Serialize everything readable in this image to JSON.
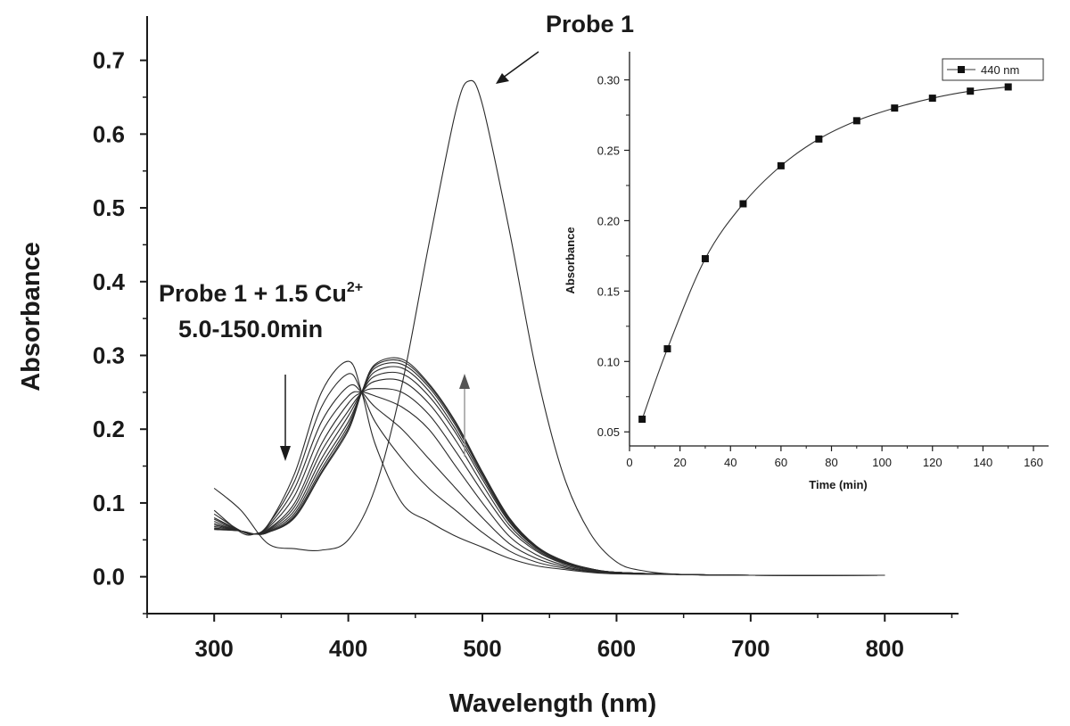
{
  "chart_data": [
    {
      "type": "line",
      "title": "",
      "xlabel": "Wavelength (nm)",
      "ylabel": "Absorbance",
      "xlim": [
        250,
        855
      ],
      "ylim": [
        -0.05,
        0.76
      ],
      "x_ticks": [
        300,
        400,
        500,
        600,
        700,
        800
      ],
      "y_ticks": [
        0.0,
        0.1,
        0.2,
        0.3,
        0.4,
        0.5,
        0.6,
        0.7
      ],
      "grid": false,
      "series": [
        {
          "name": "Probe 1",
          "x": [
            300,
            320,
            340,
            360,
            380,
            400,
            420,
            440,
            460,
            480,
            490,
            500,
            520,
            540,
            560,
            580,
            600,
            620,
            650,
            700,
            750,
            800
          ],
          "y": [
            0.12,
            0.09,
            0.045,
            0.038,
            0.036,
            0.05,
            0.12,
            0.26,
            0.45,
            0.63,
            0.672,
            0.64,
            0.47,
            0.28,
            0.14,
            0.06,
            0.02,
            0.008,
            0.003,
            0.002,
            0.002,
            0.002
          ]
        },
        {
          "x": [
            300,
            320,
            330,
            340,
            360,
            380,
            400,
            410,
            420,
            440,
            460,
            480,
            500,
            520,
            540,
            560,
            580,
            600,
            650,
            700,
            800
          ],
          "y": [
            0.09,
            0.06,
            0.058,
            0.07,
            0.14,
            0.25,
            0.292,
            0.25,
            0.18,
            0.1,
            0.075,
            0.055,
            0.04,
            0.025,
            0.015,
            0.01,
            0.006,
            0.004,
            0.003,
            0.002,
            0.002
          ]
        },
        {
          "x": [
            300,
            320,
            330,
            340,
            360,
            380,
            400,
            410,
            420,
            440,
            460,
            480,
            500,
            520,
            540,
            560,
            580,
            600,
            650,
            700,
            800
          ],
          "y": [
            0.085,
            0.062,
            0.058,
            0.07,
            0.13,
            0.23,
            0.275,
            0.25,
            0.21,
            0.16,
            0.12,
            0.09,
            0.06,
            0.035,
            0.02,
            0.012,
            0.007,
            0.004,
            0.003,
            0.002,
            0.002
          ]
        },
        {
          "x": [
            300,
            320,
            330,
            340,
            360,
            380,
            400,
            410,
            420,
            440,
            460,
            480,
            500,
            520,
            540,
            560,
            580,
            600,
            650,
            700,
            800
          ],
          "y": [
            0.08,
            0.062,
            0.058,
            0.068,
            0.12,
            0.21,
            0.258,
            0.25,
            0.23,
            0.2,
            0.16,
            0.12,
            0.08,
            0.045,
            0.025,
            0.014,
            0.008,
            0.005,
            0.003,
            0.002,
            0.002
          ]
        },
        {
          "x": [
            300,
            320,
            330,
            340,
            360,
            380,
            400,
            410,
            420,
            440,
            460,
            480,
            500,
            520,
            540,
            560,
            580,
            600,
            650,
            700,
            800
          ],
          "y": [
            0.078,
            0.062,
            0.058,
            0.066,
            0.11,
            0.195,
            0.245,
            0.25,
            0.245,
            0.23,
            0.2,
            0.15,
            0.1,
            0.055,
            0.03,
            0.016,
            0.009,
            0.005,
            0.003,
            0.002,
            0.002
          ]
        },
        {
          "x": [
            300,
            320,
            330,
            340,
            360,
            380,
            400,
            410,
            420,
            440,
            460,
            480,
            500,
            520,
            540,
            560,
            580,
            600,
            650,
            700,
            800
          ],
          "y": [
            0.075,
            0.062,
            0.058,
            0.064,
            0.1,
            0.18,
            0.235,
            0.25,
            0.255,
            0.25,
            0.22,
            0.17,
            0.115,
            0.065,
            0.035,
            0.018,
            0.01,
            0.006,
            0.003,
            0.002,
            0.002
          ]
        },
        {
          "x": [
            300,
            320,
            330,
            340,
            360,
            380,
            400,
            410,
            420,
            440,
            460,
            480,
            500,
            520,
            540,
            560,
            580,
            600,
            650,
            700,
            800
          ],
          "y": [
            0.072,
            0.062,
            0.058,
            0.063,
            0.095,
            0.17,
            0.225,
            0.25,
            0.265,
            0.265,
            0.235,
            0.185,
            0.125,
            0.07,
            0.037,
            0.019,
            0.01,
            0.006,
            0.003,
            0.002,
            0.002
          ]
        },
        {
          "x": [
            300,
            320,
            330,
            340,
            360,
            380,
            400,
            410,
            420,
            440,
            460,
            480,
            500,
            520,
            540,
            560,
            580,
            600,
            650,
            700,
            800
          ],
          "y": [
            0.07,
            0.062,
            0.058,
            0.062,
            0.09,
            0.16,
            0.218,
            0.25,
            0.272,
            0.275,
            0.245,
            0.195,
            0.132,
            0.074,
            0.039,
            0.02,
            0.011,
            0.006,
            0.003,
            0.002,
            0.002
          ]
        },
        {
          "x": [
            300,
            320,
            330,
            340,
            360,
            380,
            400,
            410,
            420,
            440,
            460,
            480,
            500,
            520,
            540,
            560,
            580,
            600,
            650,
            700,
            800
          ],
          "y": [
            0.068,
            0.062,
            0.058,
            0.061,
            0.086,
            0.152,
            0.21,
            0.25,
            0.278,
            0.283,
            0.252,
            0.2,
            0.136,
            0.076,
            0.04,
            0.021,
            0.011,
            0.006,
            0.003,
            0.002,
            0.002
          ]
        },
        {
          "x": [
            300,
            320,
            330,
            340,
            360,
            380,
            400,
            410,
            420,
            440,
            460,
            480,
            500,
            520,
            540,
            560,
            580,
            600,
            650,
            700,
            800
          ],
          "y": [
            0.066,
            0.062,
            0.058,
            0.06,
            0.083,
            0.146,
            0.205,
            0.25,
            0.283,
            0.288,
            0.257,
            0.205,
            0.139,
            0.078,
            0.041,
            0.021,
            0.011,
            0.006,
            0.003,
            0.002,
            0.002
          ]
        },
        {
          "x": [
            300,
            320,
            330,
            340,
            360,
            380,
            400,
            410,
            420,
            440,
            460,
            480,
            500,
            520,
            540,
            560,
            580,
            600,
            650,
            700,
            800
          ],
          "y": [
            0.065,
            0.062,
            0.058,
            0.06,
            0.081,
            0.142,
            0.201,
            0.25,
            0.286,
            0.292,
            0.26,
            0.208,
            0.141,
            0.079,
            0.041,
            0.021,
            0.011,
            0.006,
            0.003,
            0.002,
            0.002
          ]
        },
        {
          "x": [
            300,
            320,
            330,
            340,
            360,
            380,
            400,
            410,
            420,
            440,
            460,
            480,
            500,
            520,
            540,
            560,
            580,
            600,
            650,
            700,
            800
          ],
          "y": [
            0.064,
            0.062,
            0.058,
            0.06,
            0.08,
            0.14,
            0.198,
            0.25,
            0.288,
            0.295,
            0.262,
            0.21,
            0.142,
            0.08,
            0.042,
            0.022,
            0.011,
            0.006,
            0.003,
            0.002,
            0.002
          ]
        }
      ],
      "annotations": {
        "probe": "Probe 1",
        "cu_line1_prefix": "Probe 1 + 1.5 Cu",
        "cu_line1_sup": "2+",
        "cu_line2": "5.0-150.0min"
      }
    },
    {
      "type": "line",
      "title": "",
      "xlabel": "Time (min)",
      "ylabel": "Absorbance",
      "xlim": [
        0,
        166
      ],
      "ylim": [
        0.04,
        0.32
      ],
      "x_ticks": [
        0,
        20,
        40,
        60,
        80,
        100,
        120,
        140,
        160
      ],
      "y_ticks": [
        0.05,
        0.1,
        0.15,
        0.2,
        0.25,
        0.3
      ],
      "y_tick_labels": [
        "0.05",
        "0.10",
        "0.15",
        "0.20",
        "0.25",
        "0.30"
      ],
      "grid": false,
      "legend": "top-right",
      "series": [
        {
          "name": "440 nm",
          "marker": "square",
          "x": [
            5,
            15,
            30,
            45,
            60,
            75,
            90,
            105,
            120,
            135,
            150
          ],
          "y": [
            0.059,
            0.109,
            0.173,
            0.212,
            0.239,
            0.258,
            0.271,
            0.28,
            0.287,
            0.292,
            0.295
          ]
        }
      ]
    }
  ]
}
